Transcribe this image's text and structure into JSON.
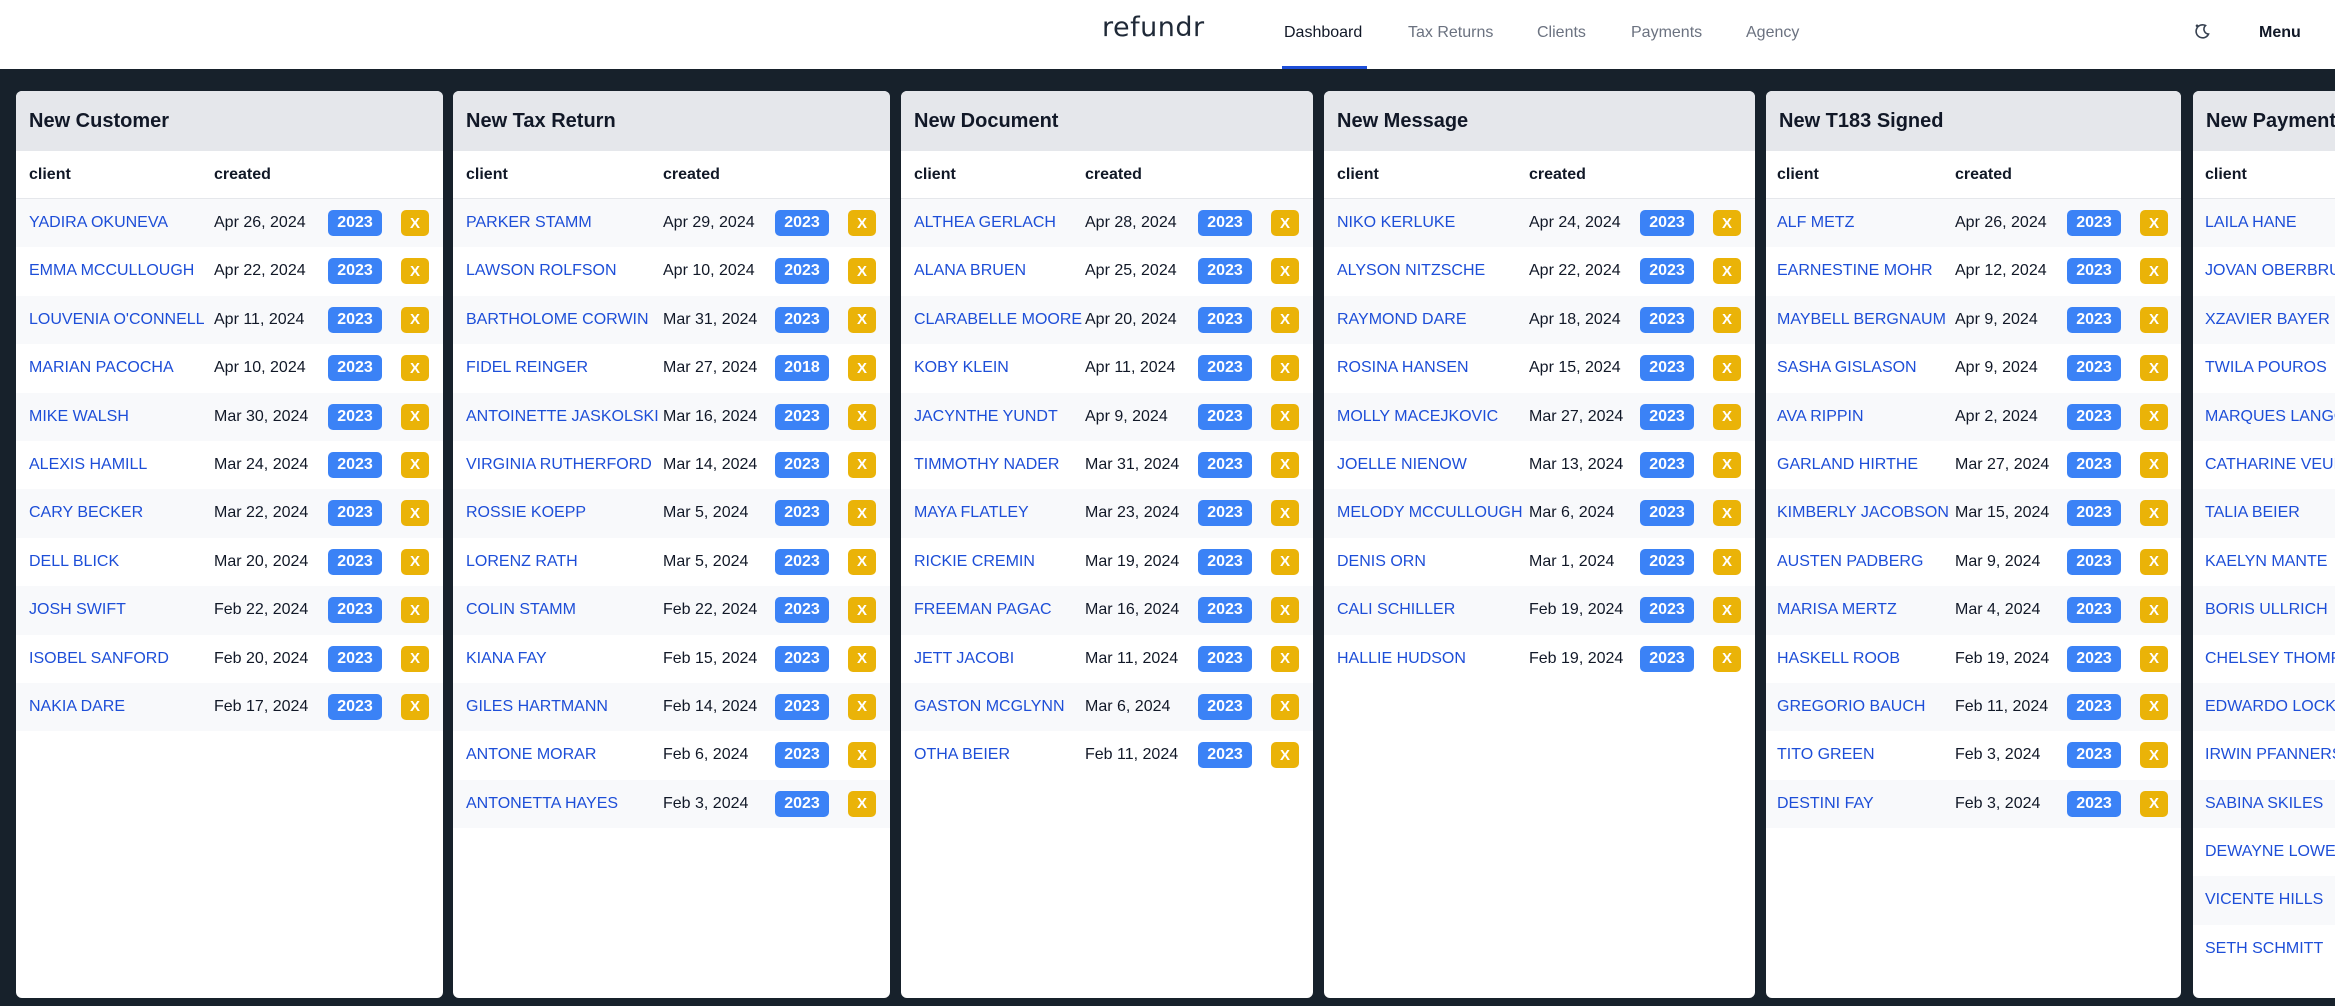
{
  "header": {
    "logo": "refundr",
    "nav": [
      "Dashboard",
      "Tax Returns",
      "Clients",
      "Payments",
      "Agency"
    ],
    "active_nav": "Dashboard",
    "menu_label": "Menu",
    "theme_icon": "theme-toggle-icon"
  },
  "colors": {
    "background": "#17212b",
    "link": "#1d4ed8",
    "year_badge": "#3b82f6",
    "dismiss_button": "#eab308",
    "panel_header": "#e5e7eb"
  },
  "columns": {
    "client": "client",
    "created": "created"
  },
  "dismiss_label": "X",
  "panels": [
    {
      "title": "New Customer",
      "rows": [
        {
          "client": "YADIRA OKUNEVA",
          "created": "Apr 26, 2024",
          "year": "2023"
        },
        {
          "client": "EMMA MCCULLOUGH",
          "created": "Apr 22, 2024",
          "year": "2023"
        },
        {
          "client": "LOUVENIA O'CONNELL",
          "created": "Apr 11, 2024",
          "year": "2023"
        },
        {
          "client": "MARIAN PACOCHA",
          "created": "Apr 10, 2024",
          "year": "2023"
        },
        {
          "client": "MIKE WALSH",
          "created": "Mar 30, 2024",
          "year": "2023"
        },
        {
          "client": "ALEXIS HAMILL",
          "created": "Mar 24, 2024",
          "year": "2023"
        },
        {
          "client": "CARY BECKER",
          "created": "Mar 22, 2024",
          "year": "2023"
        },
        {
          "client": "DELL BLICK",
          "created": "Mar 20, 2024",
          "year": "2023"
        },
        {
          "client": "JOSH SWIFT",
          "created": "Feb 22, 2024",
          "year": "2023"
        },
        {
          "client": "ISOBEL SANFORD",
          "created": "Feb 20, 2024",
          "year": "2023"
        },
        {
          "client": "NAKIA DARE",
          "created": "Feb 17, 2024",
          "year": "2023"
        }
      ]
    },
    {
      "title": "New Tax Return",
      "rows": [
        {
          "client": "PARKER STAMM",
          "created": "Apr 29, 2024",
          "year": "2023"
        },
        {
          "client": "LAWSON ROLFSON",
          "created": "Apr 10, 2024",
          "year": "2023"
        },
        {
          "client": "BARTHOLOME CORWIN",
          "created": "Mar 31, 2024",
          "year": "2023"
        },
        {
          "client": "FIDEL REINGER",
          "created": "Mar 27, 2024",
          "year": "2018"
        },
        {
          "client": "ANTOINETTE JASKOLSKI",
          "created": "Mar 16, 2024",
          "year": "2023"
        },
        {
          "client": "VIRGINIA RUTHERFORD",
          "created": "Mar 14, 2024",
          "year": "2023"
        },
        {
          "client": "ROSSIE KOEPP",
          "created": "Mar 5, 2024",
          "year": "2023"
        },
        {
          "client": "LORENZ RATH",
          "created": "Mar 5, 2024",
          "year": "2023"
        },
        {
          "client": "COLIN STAMM",
          "created": "Feb 22, 2024",
          "year": "2023"
        },
        {
          "client": "KIANA FAY",
          "created": "Feb 15, 2024",
          "year": "2023"
        },
        {
          "client": "GILES HARTMANN",
          "created": "Feb 14, 2024",
          "year": "2023"
        },
        {
          "client": "ANTONE MORAR",
          "created": "Feb 6, 2024",
          "year": "2023"
        },
        {
          "client": "ANTONETTA HAYES",
          "created": "Feb 3, 2024",
          "year": "2023"
        }
      ]
    },
    {
      "title": "New Document",
      "rows": [
        {
          "client": "ALTHEA GERLACH",
          "created": "Apr 28, 2024",
          "year": "2023"
        },
        {
          "client": "ALANA BRUEN",
          "created": "Apr 25, 2024",
          "year": "2023"
        },
        {
          "client": "CLARABELLE MOORE",
          "created": "Apr 20, 2024",
          "year": "2023"
        },
        {
          "client": "KOBY KLEIN",
          "created": "Apr 11, 2024",
          "year": "2023"
        },
        {
          "client": "JACYNTHE YUNDT",
          "created": "Apr 9, 2024",
          "year": "2023"
        },
        {
          "client": "TIMMOTHY NADER",
          "created": "Mar 31, 2024",
          "year": "2023"
        },
        {
          "client": "MAYA FLATLEY",
          "created": "Mar 23, 2024",
          "year": "2023"
        },
        {
          "client": "RICKIE CREMIN",
          "created": "Mar 19, 2024",
          "year": "2023"
        },
        {
          "client": "FREEMAN PAGAC",
          "created": "Mar 16, 2024",
          "year": "2023"
        },
        {
          "client": "JETT JACOBI",
          "created": "Mar 11, 2024",
          "year": "2023"
        },
        {
          "client": "GASTON MCGLYNN",
          "created": "Mar 6, 2024",
          "year": "2023"
        },
        {
          "client": "OTHA BEIER",
          "created": "Feb 11, 2024",
          "year": "2023"
        }
      ]
    },
    {
      "title": "New Message",
      "rows": [
        {
          "client": "NIKO KERLUKE",
          "created": "Apr 24, 2024",
          "year": "2023"
        },
        {
          "client": "ALYSON NITZSCHE",
          "created": "Apr 22, 2024",
          "year": "2023"
        },
        {
          "client": "RAYMOND DARE",
          "created": "Apr 18, 2024",
          "year": "2023"
        },
        {
          "client": "ROSINA HANSEN",
          "created": "Apr 15, 2024",
          "year": "2023"
        },
        {
          "client": "MOLLY MACEJKOVIC",
          "created": "Mar 27, 2024",
          "year": "2023"
        },
        {
          "client": "JOELLE NIENOW",
          "created": "Mar 13, 2024",
          "year": "2023"
        },
        {
          "client": "MELODY MCCULLOUGH",
          "created": "Mar 6, 2024",
          "year": "2023"
        },
        {
          "client": "DENIS ORN",
          "created": "Mar 1, 2024",
          "year": "2023"
        },
        {
          "client": "CALI SCHILLER",
          "created": "Feb 19, 2024",
          "year": "2023"
        },
        {
          "client": "HALLIE HUDSON",
          "created": "Feb 19, 2024",
          "year": "2023"
        }
      ]
    },
    {
      "title": "New T183 Signed",
      "rows": [
        {
          "client": "ALF METZ",
          "created": "Apr 26, 2024",
          "year": "2023"
        },
        {
          "client": "EARNESTINE MOHR",
          "created": "Apr 12, 2024",
          "year": "2023"
        },
        {
          "client": "MAYBELL BERGNAUM",
          "created": "Apr 9, 2024",
          "year": "2023"
        },
        {
          "client": "SASHA GISLASON",
          "created": "Apr 9, 2024",
          "year": "2023"
        },
        {
          "client": "AVA RIPPIN",
          "created": "Apr 2, 2024",
          "year": "2023"
        },
        {
          "client": "GARLAND HIRTHE",
          "created": "Mar 27, 2024",
          "year": "2023"
        },
        {
          "client": "KIMBERLY JACOBSON",
          "created": "Mar 15, 2024",
          "year": "2023"
        },
        {
          "client": "AUSTEN PADBERG",
          "created": "Mar 9, 2024",
          "year": "2023"
        },
        {
          "client": "MARISA MERTZ",
          "created": "Mar 4, 2024",
          "year": "2023"
        },
        {
          "client": "HASKELL ROOB",
          "created": "Feb 19, 2024",
          "year": "2023"
        },
        {
          "client": "GREGORIO BAUCH",
          "created": "Feb 11, 2024",
          "year": "2023"
        },
        {
          "client": "TITO GREEN",
          "created": "Feb 3, 2024",
          "year": "2023"
        },
        {
          "client": "DESTINI FAY",
          "created": "Feb 3, 2024",
          "year": "2023"
        }
      ]
    },
    {
      "title": "New Payment",
      "rows": [
        {
          "client": "LAILA HANE"
        },
        {
          "client": "JOVAN OBERBRUNNER"
        },
        {
          "client": "XZAVIER BAYER"
        },
        {
          "client": "TWILA POUROS"
        },
        {
          "client": "MARQUES LANGOSH"
        },
        {
          "client": "CATHARINE VEUM"
        },
        {
          "client": "TALIA BEIER"
        },
        {
          "client": "KAELYN MANTE"
        },
        {
          "client": "BORIS ULLRICH"
        },
        {
          "client": "CHELSEY THOMPSON"
        },
        {
          "client": "EDWARDO LOCKMAN"
        },
        {
          "client": "IRWIN PFANNERSTILL"
        },
        {
          "client": "SABINA SKILES"
        },
        {
          "client": "DEWAYNE LOWE"
        },
        {
          "client": "VICENTE HILLS"
        },
        {
          "client": "SETH SCHMITT"
        }
      ]
    }
  ]
}
